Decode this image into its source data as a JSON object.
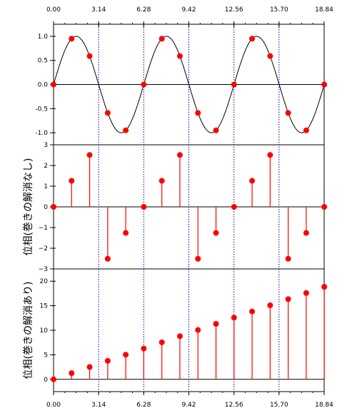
{
  "chart_data": [
    {
      "type": "line",
      "title": "",
      "xlabel": "",
      "ylabel": "",
      "xlim": [
        0,
        18.84
      ],
      "ylim": [
        -1.25,
        1.25
      ],
      "x_ticks": [
        "0.00",
        "3.14",
        "6.28",
        "9.42",
        "12.56",
        "15.70",
        "18.84"
      ],
      "y_ticks": [
        "1.0",
        "0.5",
        "0.0",
        "-0.5",
        "-1.0"
      ],
      "grid": "vertical dotted lines at multiples of π",
      "series": [
        {
          "color": "#000000",
          "style": "sine curve"
        },
        {
          "color": "#ff0000",
          "style": "markers",
          "x": [
            0,
            1.256,
            2.513,
            3.77,
            5.027,
            6.283,
            7.54,
            8.796,
            10.053,
            11.31,
            12.566,
            13.823,
            15.08,
            16.336,
            17.593,
            18.85
          ],
          "y": [
            0,
            0.95,
            0.59,
            -0.59,
            -0.95,
            0,
            0.95,
            0.59,
            -0.59,
            -0.95,
            0,
            0.95,
            0.59,
            -0.59,
            -0.95,
            0
          ]
        }
      ]
    },
    {
      "type": "stem",
      "title": "",
      "xlabel": "",
      "ylabel": "位相(巻きの解消なし)",
      "xlim": [
        0,
        18.84
      ],
      "ylim": [
        -3,
        3
      ],
      "y_ticks": [
        "3",
        "2",
        "1",
        "0",
        "−1",
        "−2",
        "−3"
      ],
      "series": [
        {
          "color": "#ff0000",
          "x": [
            0,
            1.256,
            2.513,
            3.77,
            5.027,
            6.283,
            7.54,
            8.796,
            10.053,
            11.31,
            12.566,
            13.823,
            15.08,
            16.336,
            17.593,
            18.85
          ],
          "y": [
            0,
            1.26,
            2.51,
            -2.51,
            -1.26,
            0,
            1.26,
            2.51,
            -2.51,
            -1.26,
            0,
            1.26,
            2.51,
            -2.51,
            -1.26,
            0
          ]
        }
      ]
    },
    {
      "type": "stem",
      "title": "",
      "xlabel": "",
      "ylabel": "位相(巻きの解消あり)",
      "xlim": [
        0,
        18.84
      ],
      "ylim": [
        -2.5,
        22.5
      ],
      "x_ticks": [
        "0.00",
        "3.14",
        "6.28",
        "9.42",
        "12.56",
        "15.70",
        "18.84"
      ],
      "y_ticks": [
        "20",
        "15",
        "10",
        "5",
        "0"
      ],
      "series": [
        {
          "color": "#ff0000",
          "x": [
            0,
            1.256,
            2.513,
            3.77,
            5.027,
            6.283,
            7.54,
            8.796,
            10.053,
            11.31,
            12.566,
            13.823,
            15.08,
            16.336,
            17.593,
            18.85
          ],
          "y": [
            0,
            1.26,
            2.51,
            3.77,
            5.03,
            6.28,
            7.54,
            8.8,
            10.05,
            11.31,
            12.57,
            13.82,
            15.08,
            16.34,
            17.59,
            18.85
          ]
        }
      ]
    }
  ]
}
